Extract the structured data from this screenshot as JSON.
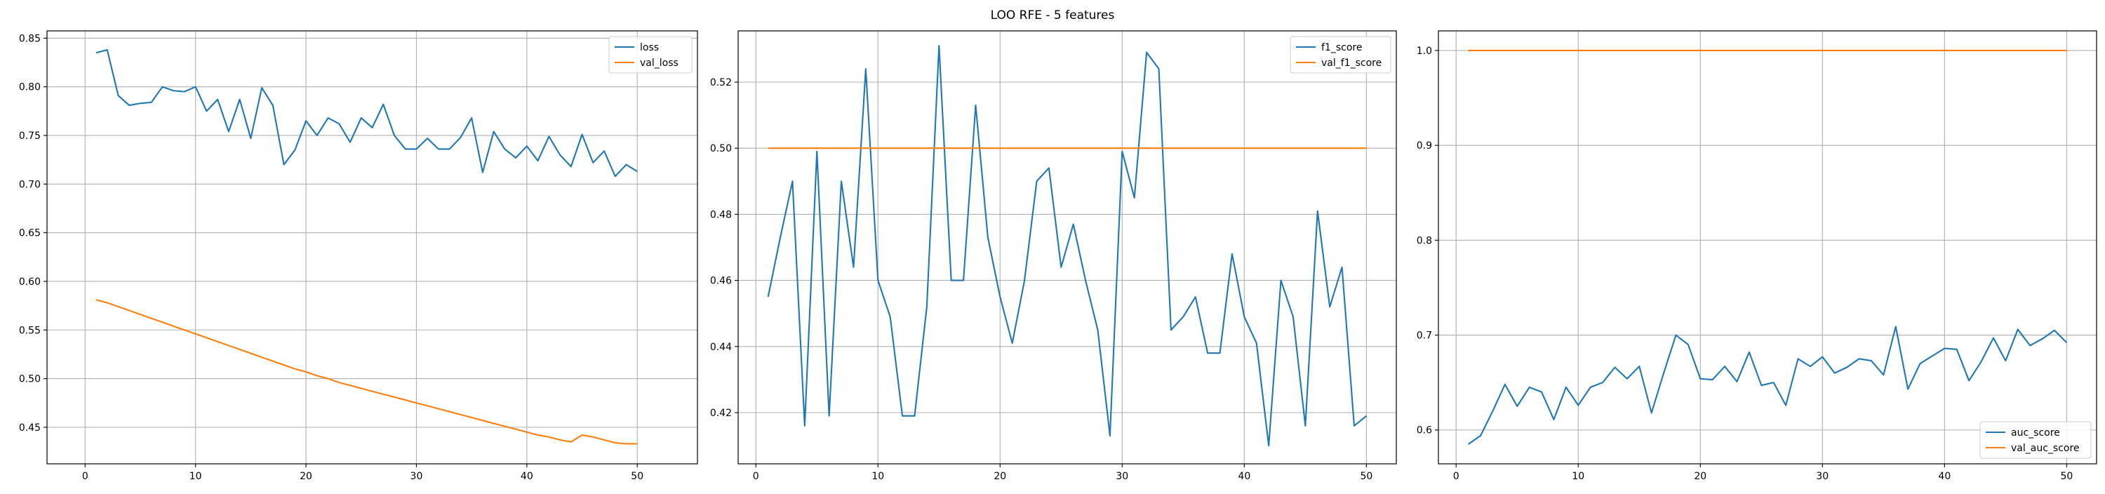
{
  "figure": {
    "suptitle": "LOO RFE - 5 features"
  },
  "colors": {
    "series_1": "#1f77b4",
    "series_2": "#ff7f0e",
    "grid": "#b0b0b0",
    "axes": "#000000",
    "legend_border": "#cccccc"
  },
  "chart_data": [
    {
      "type": "line",
      "title": "",
      "xlabel": "",
      "ylabel": "",
      "grid": true,
      "legend_position": "upper right",
      "xlim": [
        -3.45,
        55.45
      ],
      "ylim": [
        0.4124,
        0.8575
      ],
      "xticks": [
        0,
        10,
        20,
        30,
        40,
        50
      ],
      "yticks": [
        0.45,
        0.5,
        0.55,
        0.6,
        0.65,
        0.7,
        0.75,
        0.8,
        0.85
      ],
      "ytick_decimals": 2,
      "x": [
        1,
        2,
        3,
        4,
        5,
        6,
        7,
        8,
        9,
        10,
        11,
        12,
        13,
        14,
        15,
        16,
        17,
        18,
        19,
        20,
        21,
        22,
        23,
        24,
        25,
        26,
        27,
        28,
        29,
        30,
        31,
        32,
        33,
        34,
        35,
        36,
        37,
        38,
        39,
        40,
        41,
        42,
        43,
        44,
        45,
        46,
        47,
        48,
        49,
        50
      ],
      "series": [
        {
          "name": "loss",
          "color": "#1f77b4",
          "values": [
            0.835,
            0.838,
            0.791,
            0.781,
            0.783,
            0.784,
            0.8,
            0.796,
            0.795,
            0.8,
            0.775,
            0.787,
            0.754,
            0.787,
            0.747,
            0.799,
            0.781,
            0.72,
            0.735,
            0.765,
            0.75,
            0.768,
            0.762,
            0.743,
            0.768,
            0.758,
            0.782,
            0.75,
            0.736,
            0.736,
            0.747,
            0.736,
            0.736,
            0.748,
            0.768,
            0.712,
            0.754,
            0.736,
            0.727,
            0.739,
            0.724,
            0.749,
            0.73,
            0.718,
            0.751,
            0.722,
            0.734,
            0.708,
            0.72,
            0.713
          ]
        },
        {
          "name": "val_loss",
          "color": "#ff7f0e",
          "values": [
            0.581,
            0.578,
            0.574,
            0.57,
            0.566,
            0.562,
            0.558,
            0.554,
            0.55,
            0.546,
            0.542,
            0.538,
            0.534,
            0.53,
            0.526,
            0.522,
            0.518,
            0.514,
            0.51,
            0.507,
            0.503,
            0.5,
            0.496,
            0.493,
            0.49,
            0.487,
            0.484,
            0.481,
            0.478,
            0.475,
            0.472,
            0.469,
            0.466,
            0.463,
            0.46,
            0.457,
            0.454,
            0.451,
            0.448,
            0.445,
            0.442,
            0.44,
            0.437,
            0.435,
            0.442,
            0.44,
            0.437,
            0.434,
            0.433,
            0.433
          ]
        }
      ]
    },
    {
      "type": "line",
      "title": "",
      "xlabel": "",
      "ylabel": "",
      "grid": true,
      "legend_position": "upper right",
      "xlim": [
        -1.45,
        52.45
      ],
      "ylim": [
        0.4045,
        0.5355
      ],
      "xticks": [
        0,
        10,
        20,
        30,
        40,
        50
      ],
      "yticks": [
        0.42,
        0.44,
        0.46,
        0.48,
        0.5,
        0.52
      ],
      "ytick_decimals": 2,
      "x": [
        1,
        2,
        3,
        4,
        5,
        6,
        7,
        8,
        9,
        10,
        11,
        12,
        13,
        14,
        15,
        16,
        17,
        18,
        19,
        20,
        21,
        22,
        23,
        24,
        25,
        26,
        27,
        28,
        29,
        30,
        31,
        32,
        33,
        34,
        35,
        36,
        37,
        38,
        39,
        40,
        41,
        42,
        43,
        44,
        45,
        46,
        47,
        48,
        49,
        50
      ],
      "series": [
        {
          "name": "f1_score",
          "color": "#1f77b4",
          "values": [
            0.455,
            0.473,
            0.49,
            0.416,
            0.499,
            0.419,
            0.49,
            0.464,
            0.524,
            0.46,
            0.449,
            0.419,
            0.419,
            0.452,
            0.531,
            0.46,
            0.46,
            0.513,
            0.473,
            0.455,
            0.441,
            0.46,
            0.49,
            0.494,
            0.464,
            0.477,
            0.46,
            0.445,
            0.413,
            0.499,
            0.485,
            0.529,
            0.524,
            0.445,
            0.449,
            0.455,
            0.438,
            0.438,
            0.468,
            0.449,
            0.441,
            0.41,
            0.46,
            0.449,
            0.416,
            0.481,
            0.452,
            0.464,
            0.416,
            0.419
          ]
        },
        {
          "name": "val_f1_score",
          "color": "#ff7f0e",
          "values": [
            0.5,
            0.5,
            0.5,
            0.5,
            0.5,
            0.5,
            0.5,
            0.5,
            0.5,
            0.5,
            0.5,
            0.5,
            0.5,
            0.5,
            0.5,
            0.5,
            0.5,
            0.5,
            0.5,
            0.5,
            0.5,
            0.5,
            0.5,
            0.5,
            0.5,
            0.5,
            0.5,
            0.5,
            0.5,
            0.5,
            0.5,
            0.5,
            0.5,
            0.5,
            0.5,
            0.5,
            0.5,
            0.5,
            0.5,
            0.5,
            0.5,
            0.5,
            0.5,
            0.5,
            0.5,
            0.5,
            0.5,
            0.5,
            0.5,
            0.5
          ]
        }
      ]
    },
    {
      "type": "line",
      "title": "",
      "xlabel": "",
      "ylabel": "",
      "grid": true,
      "legend_position": "lower right",
      "xlim": [
        -1.45,
        52.45
      ],
      "ylim": [
        0.5643,
        1.0207
      ],
      "xticks": [
        0,
        10,
        20,
        30,
        40,
        50
      ],
      "yticks": [
        0.6,
        0.7,
        0.8,
        0.9,
        1.0
      ],
      "ytick_decimals": 1,
      "x": [
        1,
        2,
        3,
        4,
        5,
        6,
        7,
        8,
        9,
        10,
        11,
        12,
        13,
        14,
        15,
        16,
        17,
        18,
        19,
        20,
        21,
        22,
        23,
        24,
        25,
        26,
        27,
        28,
        29,
        30,
        31,
        32,
        33,
        34,
        35,
        36,
        37,
        38,
        39,
        40,
        41,
        42,
        43,
        44,
        45,
        46,
        47,
        48,
        49,
        50
      ],
      "series": [
        {
          "name": "auc_score",
          "color": "#1f77b4",
          "values": [
            0.585,
            0.594,
            0.62,
            0.648,
            0.625,
            0.645,
            0.64,
            0.611,
            0.645,
            0.626,
            0.645,
            0.65,
            0.666,
            0.654,
            0.667,
            0.618,
            0.66,
            0.7,
            0.69,
            0.654,
            0.653,
            0.667,
            0.651,
            0.682,
            0.647,
            0.65,
            0.626,
            0.675,
            0.667,
            0.677,
            0.66,
            0.666,
            0.675,
            0.673,
            0.658,
            0.709,
            0.643,
            0.67,
            0.678,
            0.686,
            0.685,
            0.652,
            0.672,
            0.697,
            0.673,
            0.706,
            0.689,
            0.696,
            0.705,
            0.692
          ]
        },
        {
          "name": "val_auc_score",
          "color": "#ff7f0e",
          "values": [
            1.0,
            1.0,
            1.0,
            1.0,
            1.0,
            1.0,
            1.0,
            1.0,
            1.0,
            1.0,
            1.0,
            1.0,
            1.0,
            1.0,
            1.0,
            1.0,
            1.0,
            1.0,
            1.0,
            1.0,
            1.0,
            1.0,
            1.0,
            1.0,
            1.0,
            1.0,
            1.0,
            1.0,
            1.0,
            1.0,
            1.0,
            1.0,
            1.0,
            1.0,
            1.0,
            1.0,
            1.0,
            1.0,
            1.0,
            1.0,
            1.0,
            1.0,
            1.0,
            1.0,
            1.0,
            1.0,
            1.0,
            1.0,
            1.0,
            1.0
          ]
        }
      ]
    }
  ]
}
